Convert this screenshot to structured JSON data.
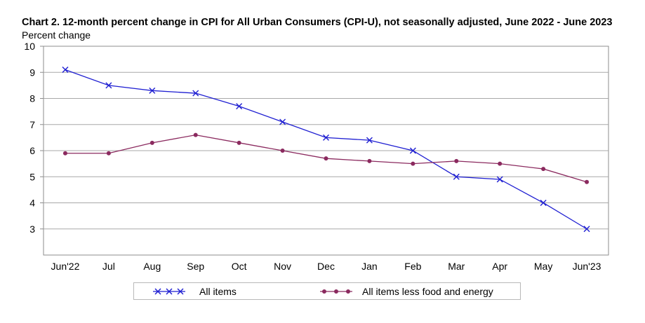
{
  "chart_data": {
    "type": "line",
    "title": "Chart 2. 12-month percent change in CPI for All Urban Consumers (CPI-U), not seasonally adjusted, June 2022 - June 2023",
    "ylabel": "Percent change",
    "xlabel": "",
    "categories": [
      "Jun'22",
      "Jul",
      "Aug",
      "Sep",
      "Oct",
      "Nov",
      "Dec",
      "Jan",
      "Feb",
      "Mar",
      "Apr",
      "May",
      "Jun'23"
    ],
    "ylim": [
      2,
      10
    ],
    "yticks": [
      3,
      4,
      5,
      6,
      7,
      8,
      9,
      10
    ],
    "grid": true,
    "legend_position": "bottom",
    "series": [
      {
        "name": "All items",
        "marker": "x",
        "color": "#1f1fd2",
        "values": [
          9.1,
          8.5,
          8.3,
          8.2,
          7.7,
          7.1,
          6.5,
          6.4,
          6.0,
          5.0,
          4.9,
          4.0,
          3.0
        ]
      },
      {
        "name": "All items less food and energy",
        "marker": "dot",
        "color": "#8b2a5f",
        "values": [
          5.9,
          5.9,
          6.3,
          6.6,
          6.3,
          6.0,
          5.7,
          5.6,
          5.5,
          5.6,
          5.5,
          5.3,
          4.8
        ]
      }
    ]
  }
}
